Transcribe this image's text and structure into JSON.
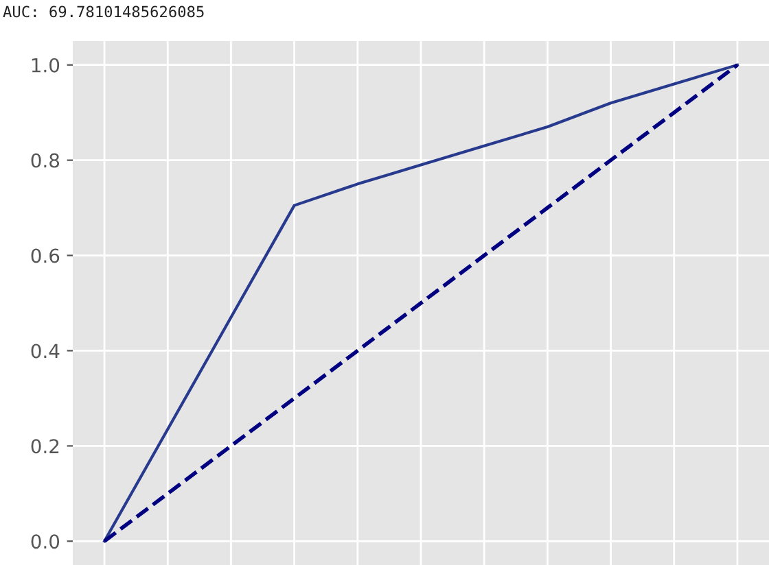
{
  "chart_data": {
    "type": "line",
    "annotations": [
      "AUC: 69.78101485626085"
    ],
    "categories": [
      null,
      null,
      null,
      null,
      null,
      null,
      null,
      null,
      null,
      null,
      null
    ],
    "series": [
      {
        "color": "#283a8e",
        "values": [
          0,
          0.235,
          0.47,
          0.705,
          0.75,
          0.79,
          0.83,
          0.87,
          0.92,
          0.96,
          1
        ],
        "line_style": "solid"
      },
      {
        "color": "#000080",
        "values": [
          0,
          0.1,
          0.2,
          0.3,
          0.4,
          0.5,
          0.6,
          0.7,
          0.8,
          0.9,
          1
        ],
        "line_style": "dashed"
      }
    ],
    "ylim": [
      -0.05,
      1.05
    ],
    "yticks": [
      {
        "value": 0,
        "label": "0.0"
      },
      {
        "value": 0.2,
        "label": "0.2"
      },
      {
        "value": 0.4,
        "label": "0.4"
      },
      {
        "value": 0.6,
        "label": "0.6"
      },
      {
        "value": 0.8,
        "label": "0.8"
      },
      {
        "value": 1.0,
        "label": "1.0"
      }
    ],
    "grid": true,
    "legend": false,
    "marker": "none"
  }
}
